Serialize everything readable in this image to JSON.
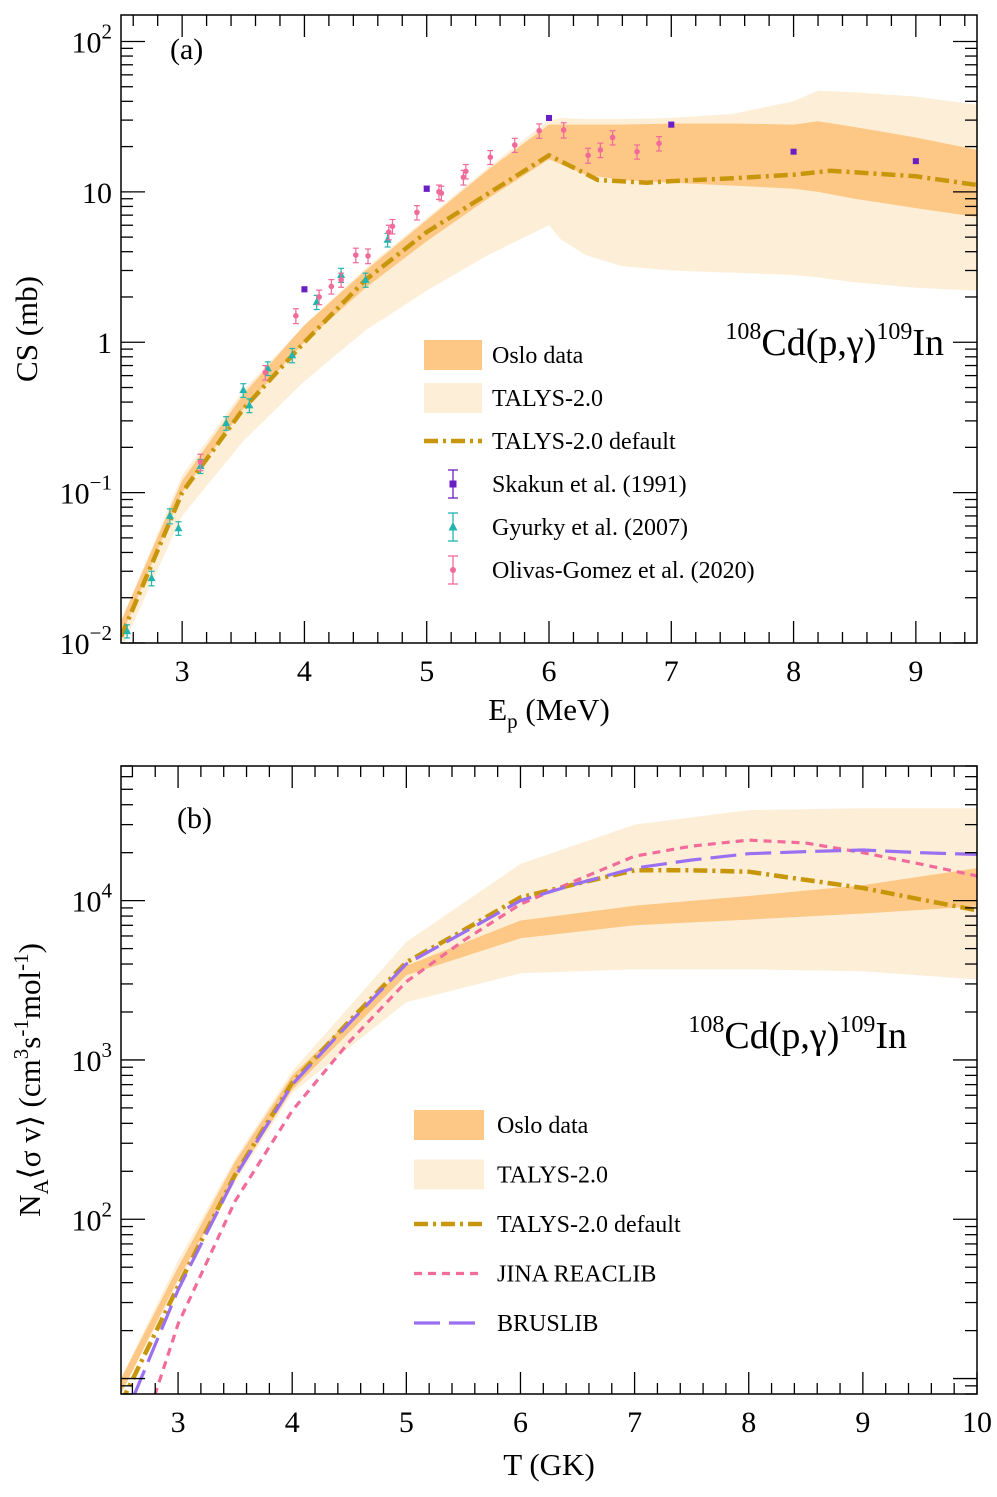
{
  "panels": [
    {
      "id": "a",
      "panel_label": "(a)",
      "reaction": {
        "sup_a": "108",
        "main_a": "Cd(p,",
        "gamma": "γ",
        "close": ")",
        "sup_b": "109",
        "main_b": "In"
      },
      "legend": [
        {
          "label": "Oslo data",
          "kind": "band",
          "color": "#fdc886"
        },
        {
          "label": "TALYS-2.0",
          "kind": "band",
          "color": "#fdefd7"
        },
        {
          "label": "TALYS-2.0 default",
          "kind": "dashdot",
          "color": "#c8960a"
        },
        {
          "label": "Skakun et al. (1991)",
          "kind": "marker",
          "color": "#6a1fc4",
          "marker": "square"
        },
        {
          "label": "Gyurky et al. (2007)",
          "kind": "marker",
          "color": "#22b5b0",
          "marker": "triangle"
        },
        {
          "label": "Olivas-Gomez et al. (2020)",
          "kind": "marker",
          "color": "#f06a9a",
          "marker": "circle"
        }
      ]
    },
    {
      "id": "b",
      "panel_label": "(b)",
      "reaction": {
        "sup_a": "108",
        "main_a": "Cd(p,",
        "gamma": "γ",
        "close": ")",
        "sup_b": "109",
        "main_b": "In"
      },
      "legend": [
        {
          "label": "Oslo data",
          "kind": "band",
          "color": "#fdc886"
        },
        {
          "label": "TALYS-2.0",
          "kind": "band",
          "color": "#fdefd7"
        },
        {
          "label": "TALYS-2.0 default",
          "kind": "dashdot",
          "color": "#c8960a"
        },
        {
          "label": "JINA REACLIB",
          "kind": "dashed",
          "color": "#f36b9a"
        },
        {
          "label": "BRUSLIB",
          "kind": "longdash",
          "color": "#9b6ff2"
        }
      ]
    }
  ],
  "chart_data": [
    {
      "type": "line",
      "title": "(a)",
      "xlabel": {
        "main": "E",
        "sub": "p",
        "rest": " (MeV)"
      },
      "ylabel": "CS (mb)",
      "xlim": [
        2.5,
        9.5
      ],
      "ylim": [
        0.01,
        150
      ],
      "yscale": "log",
      "xticks": [
        3,
        4,
        5,
        6,
        7,
        8,
        9
      ],
      "xtick_labels": [
        "3",
        "4",
        "5",
        "6",
        "7",
        "8",
        "9"
      ],
      "yticks": [
        {
          "value": 0.01,
          "base": "10",
          "exp": "−2"
        },
        {
          "value": 0.1,
          "base": "10",
          "exp": "−1"
        },
        {
          "value": 1,
          "base": "1",
          "exp": ""
        },
        {
          "value": 10,
          "base": "10",
          "exp": ""
        },
        {
          "value": 100,
          "base": "10",
          "exp": "2"
        }
      ],
      "bands": [
        {
          "name": "TALYS-2.0",
          "color": "#fdefd7",
          "x": [
            2.5,
            3.0,
            3.5,
            4.0,
            4.5,
            5.0,
            5.5,
            6.0,
            6.1,
            6.3,
            6.6,
            7.0,
            7.5,
            8.0,
            8.2,
            8.5,
            9.0,
            9.5
          ],
          "low": [
            0.009,
            0.07,
            0.22,
            0.55,
            1.2,
            2.2,
            3.8,
            6.0,
            4.8,
            3.8,
            3.2,
            3.0,
            2.9,
            2.8,
            2.7,
            2.5,
            2.3,
            2.2
          ],
          "high": [
            0.014,
            0.13,
            0.48,
            1.3,
            3.1,
            6.7,
            14.5,
            30.0,
            31.0,
            30.5,
            30.5,
            31.0,
            33.0,
            40.0,
            47.0,
            46.0,
            43.0,
            38.0
          ]
        },
        {
          "name": "Oslo data",
          "color": "#fdc886",
          "x": [
            2.5,
            3.0,
            3.5,
            4.0,
            4.5,
            5.0,
            5.5,
            6.0,
            6.3,
            6.6,
            7.0,
            7.5,
            8.0,
            8.2,
            8.5,
            9.0,
            9.5
          ],
          "low": [
            0.011,
            0.1,
            0.36,
            1.0,
            2.3,
            4.7,
            9.0,
            16.5,
            13.0,
            12.0,
            11.5,
            11.0,
            10.5,
            10.0,
            9.0,
            7.8,
            6.8
          ],
          "high": [
            0.014,
            0.12,
            0.45,
            1.3,
            3.0,
            6.5,
            14.0,
            28.0,
            28.0,
            28.0,
            28.5,
            28.5,
            28.0,
            29.5,
            27.0,
            23.0,
            19.0
          ]
        }
      ],
      "series": [
        {
          "name": "TALYS-2.0 default",
          "style": "dashdot",
          "color": "#c8960a",
          "x": [
            2.5,
            3.0,
            3.5,
            4.0,
            4.5,
            5.0,
            5.5,
            6.0,
            6.2,
            6.4,
            6.8,
            7.0,
            7.5,
            8.0,
            8.3,
            8.5,
            9.0,
            9.5
          ],
          "y": [
            0.011,
            0.1,
            0.36,
            1.0,
            2.6,
            5.4,
            9.7,
            17.5,
            14.5,
            12.0,
            11.5,
            11.8,
            12.3,
            13.0,
            13.8,
            13.5,
            12.7,
            11.1
          ]
        }
      ],
      "points": [
        {
          "name": "Skakun et al. (1991)",
          "marker": "square",
          "color": "#6a1fc4",
          "x": [
            4.0,
            5.0,
            6.0,
            7.0,
            8.0,
            9.0
          ],
          "y": [
            2.25,
            10.5,
            31.0,
            28.0,
            18.5,
            16.0
          ],
          "err": [
            0.08,
            0.4,
            1.0,
            1.0,
            0.6,
            0.5
          ]
        },
        {
          "name": "Gyurky et al. (2007)",
          "marker": "triangle",
          "color": "#22b5b0",
          "x": [
            2.55,
            2.75,
            2.9,
            2.97,
            3.15,
            3.36,
            3.5,
            3.55,
            3.7,
            3.9,
            4.1,
            4.3,
            4.5,
            4.68
          ],
          "y": [
            0.012,
            0.027,
            0.07,
            0.058,
            0.15,
            0.29,
            0.48,
            0.38,
            0.67,
            0.82,
            1.85,
            2.8,
            2.6,
            4.8
          ],
          "err": [
            0.0012,
            0.003,
            0.008,
            0.006,
            0.016,
            0.03,
            0.05,
            0.04,
            0.07,
            0.09,
            0.2,
            0.3,
            0.28,
            0.5
          ]
        },
        {
          "name": "Olivas-Gomez et al. (2020)",
          "marker": "circle",
          "color": "#f06a9a",
          "x": [
            3.15,
            3.68,
            3.93,
            4.12,
            4.22,
            4.3,
            4.42,
            4.52,
            4.69,
            4.72,
            4.92,
            5.1,
            5.12,
            5.3,
            5.32,
            5.52,
            5.72,
            5.92,
            6.12,
            6.32,
            6.42,
            6.52,
            6.72,
            6.9
          ],
          "y": [
            0.16,
            0.63,
            1.5,
            2.0,
            2.35,
            2.6,
            3.8,
            3.75,
            5.4,
            5.9,
            7.3,
            10.0,
            9.8,
            12.5,
            13.7,
            17.0,
            20.5,
            25.5,
            25.8,
            17.5,
            19.0,
            23.0,
            18.5,
            21.0
          ],
          "err": [
            0.02,
            0.07,
            0.17,
            0.22,
            0.26,
            0.28,
            0.42,
            0.42,
            0.6,
            0.65,
            0.8,
            1.1,
            1.1,
            1.4,
            1.5,
            1.8,
            2.2,
            2.8,
            3.0,
            2.0,
            2.1,
            2.5,
            2.0,
            2.3
          ]
        }
      ]
    },
    {
      "type": "line",
      "title": "(b)",
      "xlabel": {
        "main": "T (GK)",
        "sub": "",
        "rest": ""
      },
      "ylabel": {
        "N": "N",
        "A": "A",
        "body": "⟨σ v⟩ (cm",
        "c3": "3",
        "s": "s",
        "m1": "-1",
        "mol": "mol",
        "m2": "-1",
        "close": ")"
      },
      "xlim": [
        2.5,
        10
      ],
      "ylim": [
        8,
        70000
      ],
      "yscale": "log",
      "xticks": [
        3,
        4,
        5,
        6,
        7,
        8,
        9,
        10
      ],
      "xtick_labels": [
        "3",
        "4",
        "5",
        "6",
        "7",
        "8",
        "9",
        "10"
      ],
      "yticks": [
        {
          "value": 100,
          "base": "10",
          "exp": "2"
        },
        {
          "value": 1000,
          "base": "10",
          "exp": "3"
        },
        {
          "value": 10000,
          "base": "10",
          "exp": "4"
        }
      ],
      "bands": [
        {
          "name": "TALYS-2.0",
          "color": "#fdefd7",
          "x": [
            2.5,
            3.0,
            3.5,
            4.0,
            5.0,
            6.0,
            7.0,
            8.0,
            9.0,
            10.0
          ],
          "low": [
            8,
            40,
            170,
            620,
            2300,
            3500,
            3700,
            3700,
            3600,
            3200
          ],
          "high": [
            10,
            55,
            240,
            850,
            5500,
            17000,
            30000,
            37000,
            38000,
            38000
          ]
        },
        {
          "name": "Oslo data",
          "color": "#fdc886",
          "x": [
            2.5,
            3.0,
            3.5,
            4.0,
            5.0,
            6.0,
            7.0,
            8.0,
            9.0,
            10.0
          ],
          "low": [
            8,
            42,
            180,
            650,
            3400,
            5800,
            7000,
            7600,
            8300,
            9200
          ],
          "high": [
            10,
            50,
            230,
            800,
            3900,
            7500,
            9300,
            10700,
            12500,
            16000
          ]
        }
      ],
      "series": [
        {
          "name": "TALYS-2.0 default",
          "style": "dashdot",
          "color": "#c8960a",
          "x": [
            2.5,
            3.0,
            3.5,
            4.0,
            4.5,
            5.0,
            5.5,
            6.0,
            6.5,
            7.0,
            7.5,
            8.0,
            8.5,
            9.0,
            9.5,
            10.0
          ],
          "y": [
            7,
            38,
            190,
            720,
            1750,
            4100,
            6500,
            10500,
            12800,
            15500,
            15500,
            15200,
            13500,
            12000,
            10200,
            8700
          ]
        },
        {
          "name": "JINA REACLIB",
          "style": "dashed",
          "color": "#f36b9a",
          "x": [
            2.6,
            2.8,
            3.0,
            3.5,
            4.0,
            4.5,
            5.0,
            5.5,
            6.0,
            6.5,
            7.0,
            7.5,
            8.0,
            8.5,
            9.0,
            9.5,
            10.0
          ],
          "y": [
            3,
            8,
            22,
            130,
            480,
            1300,
            3100,
            5600,
            9500,
            13500,
            19000,
            22000,
            24000,
            23000,
            20000,
            17000,
            14300
          ]
        },
        {
          "name": "BRUSLIB",
          "style": "longdash",
          "color": "#9b6ff2",
          "x": [
            2.5,
            3.0,
            3.5,
            4.0,
            4.5,
            5.0,
            5.5,
            6.0,
            6.5,
            7.0,
            7.5,
            8.0,
            8.5,
            9.0,
            9.5,
            10.0
          ],
          "y": [
            5,
            36,
            185,
            700,
            1700,
            4000,
            6300,
            10000,
            12800,
            16000,
            18000,
            19700,
            20300,
            20800,
            20000,
            19500
          ]
        }
      ],
      "points": []
    }
  ]
}
